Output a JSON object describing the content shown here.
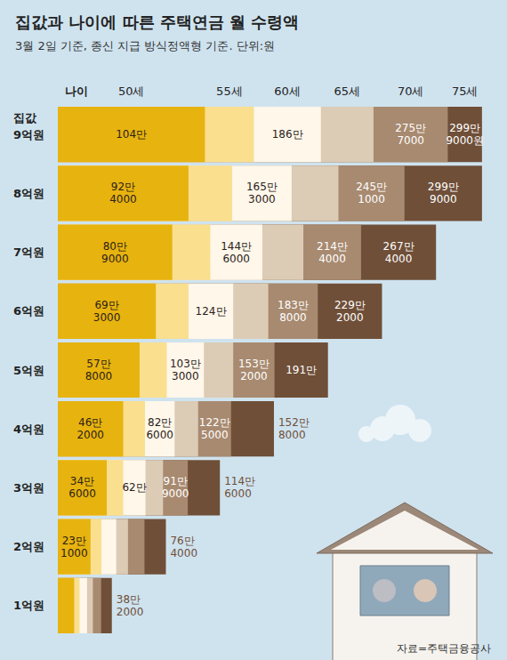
{
  "chart_data": {
    "type": "bar",
    "title": "집값과 나이에 따른 주택연금 월 수령액",
    "subtitle": "3월 2일 기준, 종신 지급 방식정액형 기준. 단위:원",
    "xlabel": "나이",
    "ylabel": "집값",
    "source": "자료=주택금융공사",
    "orientation": "horizontal",
    "stacked": false,
    "data_labels": true,
    "tick_labels": "y",
    "grid": false,
    "xlim": [
      0,
      3050000
    ],
    "categories": [
      "9억원",
      "8억원",
      "7억원",
      "6억원",
      "5억원",
      "4억원",
      "3억원",
      "2억원",
      "1억원"
    ],
    "series": [
      {
        "name": "50세",
        "color": "#e7b30f",
        "values": [
          1040000,
          924000,
          809000,
          693000,
          578000,
          462000,
          346000,
          231000,
          115500
        ],
        "value_labels": [
          "104만",
          "92만 4000",
          "80만 9000",
          "69만 3000",
          "57만 8000",
          "46만 2000",
          "34만 6000",
          "23만 1000",
          null
        ]
      },
      {
        "name": "55세",
        "color": "#f9df8e",
        "values": [
          1386000,
          1232000,
          1078000,
          924000,
          770000,
          616000,
          462000,
          308000,
          154000
        ],
        "value_labels": [
          null,
          null,
          null,
          null,
          null,
          null,
          null,
          null,
          null
        ]
      },
      {
        "name": "60세",
        "color": "#fef7ea",
        "values": [
          1860000,
          1653000,
          1446000,
          1240000,
          1033000,
          826000,
          620000,
          413000,
          206700
        ],
        "value_labels": [
          "186만",
          "165만 3000",
          "144만 6000",
          "124만",
          "103만 3000",
          "82만 6000",
          "62만",
          null,
          null
        ]
      },
      {
        "name": "65세",
        "color": "#dccbb5",
        "values": [
          2232000,
          1984000,
          1736000,
          1488000,
          1240000,
          992000,
          744000,
          496000,
          248000
        ],
        "value_labels": [
          null,
          null,
          null,
          null,
          null,
          null,
          null,
          null,
          null
        ]
      },
      {
        "name": "70세",
        "color": "#a88a70",
        "values": [
          2757000,
          2451000,
          2144000,
          1838000,
          1532000,
          1225000,
          919000,
          612600,
          306300
        ],
        "value_labels": [
          "275만 7000",
          "245만 1000",
          "214만 4000",
          "183만 8000",
          "153만 2000",
          "122만 5000",
          "91만 9000",
          null,
          null
        ]
      },
      {
        "name": "75세",
        "color": "#6f4f38",
        "values": [
          2999000,
          2999000,
          2674000,
          2292000,
          1910000,
          1528000,
          1146000,
          764000,
          382000
        ],
        "value_labels": [
          "299만 9000원",
          "299만 9000",
          "267만 4000",
          "229만 2000",
          "191만",
          "152만 8000",
          "114만 6000",
          "76만 4000",
          "38만 2000"
        ]
      }
    ]
  }
}
